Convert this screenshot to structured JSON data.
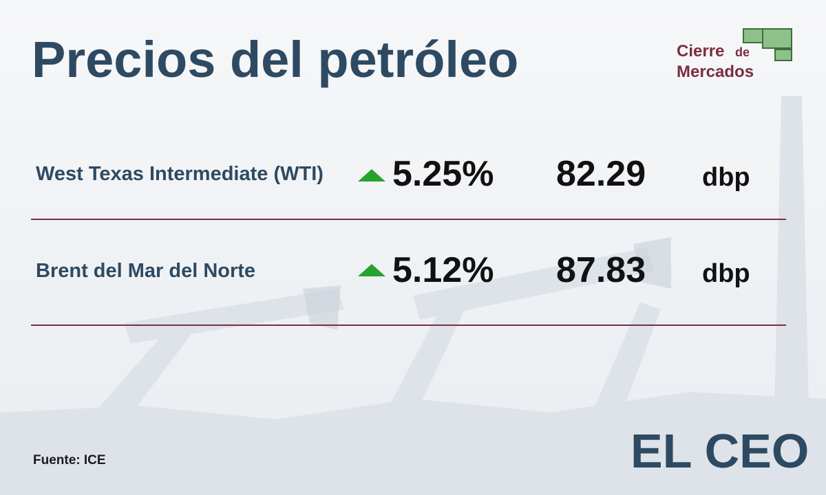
{
  "header": {
    "title": "Precios del petróleo",
    "badge": {
      "line1": "Cierre",
      "small": "de",
      "line2": "Mercados"
    }
  },
  "table": {
    "rows": [
      [
        "West Texas Intermediate (WTI)",
        "5.25%",
        "82.29",
        "dbp"
      ],
      [
        "Brent del Mar del Norte",
        "5.12%",
        "87.83",
        "dbp"
      ]
    ]
  },
  "footer": {
    "source": "Fuente: ICE",
    "logo": "EL CEO"
  }
}
